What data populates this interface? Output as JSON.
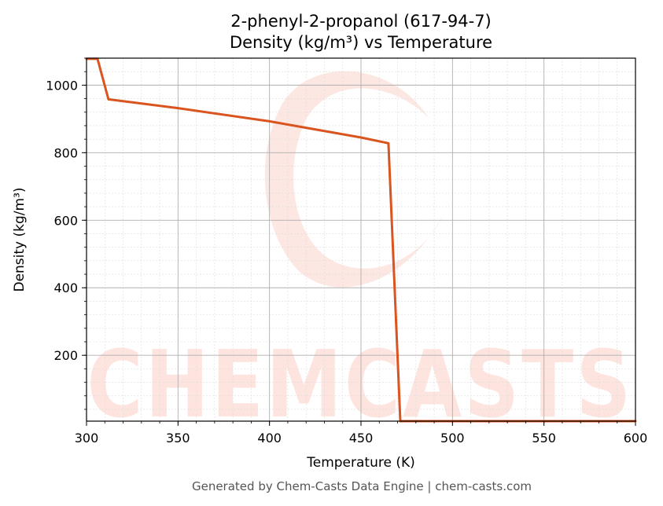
{
  "chart_data": {
    "type": "line",
    "title": "2-phenyl-2-propanol (617-94-7)",
    "subtitle": "Density (kg/m³) vs Temperature",
    "xlabel": "Temperature (K)",
    "ylabel": "Density (kg/m³)",
    "xlim": [
      300,
      600
    ],
    "ylim": [
      5,
      1080
    ],
    "x_ticks": [
      300,
      350,
      400,
      450,
      500,
      550,
      600
    ],
    "y_ticks": [
      200,
      400,
      600,
      800,
      1000
    ],
    "grid": true,
    "series": [
      {
        "name": "",
        "color": "#d9541e",
        "x": [
          300,
          306,
          312,
          350,
          400,
          450,
          465,
          471.5,
          480,
          500,
          550,
          600
        ],
        "y": [
          1078,
          1078,
          958,
          932,
          893,
          845,
          828,
          5,
          5,
          5,
          5,
          5
        ]
      }
    ]
  },
  "watermark": {
    "text": "CHEMCASTS",
    "color": "#fde4df"
  },
  "footer": {
    "text": "Generated by Chem-Casts Data Engine | chem-casts.com"
  }
}
